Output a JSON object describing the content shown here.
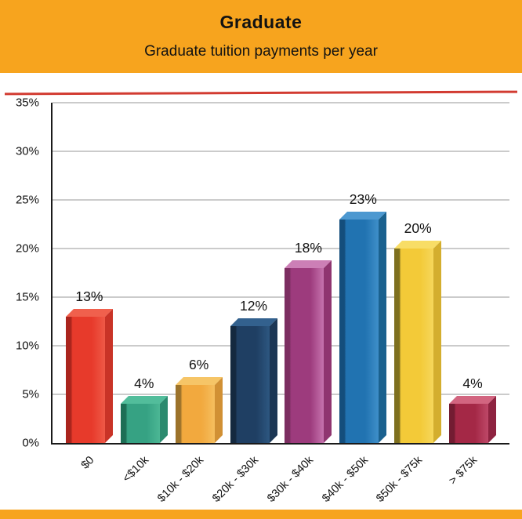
{
  "header": {
    "title": "Graduate",
    "subtitle": "Graduate tuition payments per year"
  },
  "colors": {
    "header_bg": "#F7A41E",
    "panel_bg": "#FFFFFF",
    "accent_line": "#D23B31",
    "axis": "#1A1A1A",
    "grid": "#CBCBCB",
    "text": "#121212"
  },
  "chart_data": {
    "type": "bar",
    "title": "Graduate",
    "subtitle": "Graduate tuition payments per year",
    "categories": [
      "$0",
      "<$10k",
      "$10k - $20k",
      "$20k - $30k",
      "$30k - $40k",
      "$40k - $50k",
      "$50k - $75k",
      "> $75k"
    ],
    "values": [
      13,
      4,
      6,
      12,
      18,
      23,
      20,
      4
    ],
    "value_labels": [
      "13%",
      "4%",
      "6%",
      "12%",
      "18%",
      "23%",
      "20%",
      "4%"
    ],
    "xlabel": "",
    "ylabel": "",
    "ylim": [
      0,
      35
    ],
    "ytick_step": 5,
    "ytick_labels": [
      "0%",
      "5%",
      "10%",
      "15%",
      "20%",
      "25%",
      "30%",
      "35%"
    ],
    "grid": true,
    "legend": false,
    "bar_style": "3d",
    "bar_colors": [
      {
        "dark": "#AA241D",
        "front": "#E73A2B",
        "light": "#EF5947",
        "top": "#F0604D",
        "side": "#C93327"
      },
      {
        "dark": "#1D6E55",
        "front": "#36A283",
        "light": "#4CB795",
        "top": "#52BD9B",
        "side": "#2B8A6E"
      },
      {
        "dark": "#9C732B",
        "front": "#F2A93E",
        "light": "#F5BE5F",
        "top": "#F6C567",
        "side": "#D19034"
      },
      {
        "dark": "#14293F",
        "front": "#1F3F63",
        "light": "#2D5781",
        "top": "#33618E",
        "side": "#1B3654"
      },
      {
        "dark": "#7C2E61",
        "front": "#9D3B7D",
        "light": "#C673AE",
        "top": "#CC7FB6",
        "side": "#8F3570"
      },
      {
        "dark": "#144E7C",
        "front": "#2173B1",
        "light": "#3F8FC9",
        "top": "#4C98D0",
        "side": "#1A618F"
      },
      {
        "dark": "#7E701F",
        "front": "#F3CA38",
        "light": "#F6D75B",
        "top": "#F8DD66",
        "side": "#D4AE2E"
      },
      {
        "dark": "#731C32",
        "front": "#A42846",
        "light": "#BE4868",
        "top": "#D26580",
        "side": "#8E2340"
      }
    ]
  }
}
